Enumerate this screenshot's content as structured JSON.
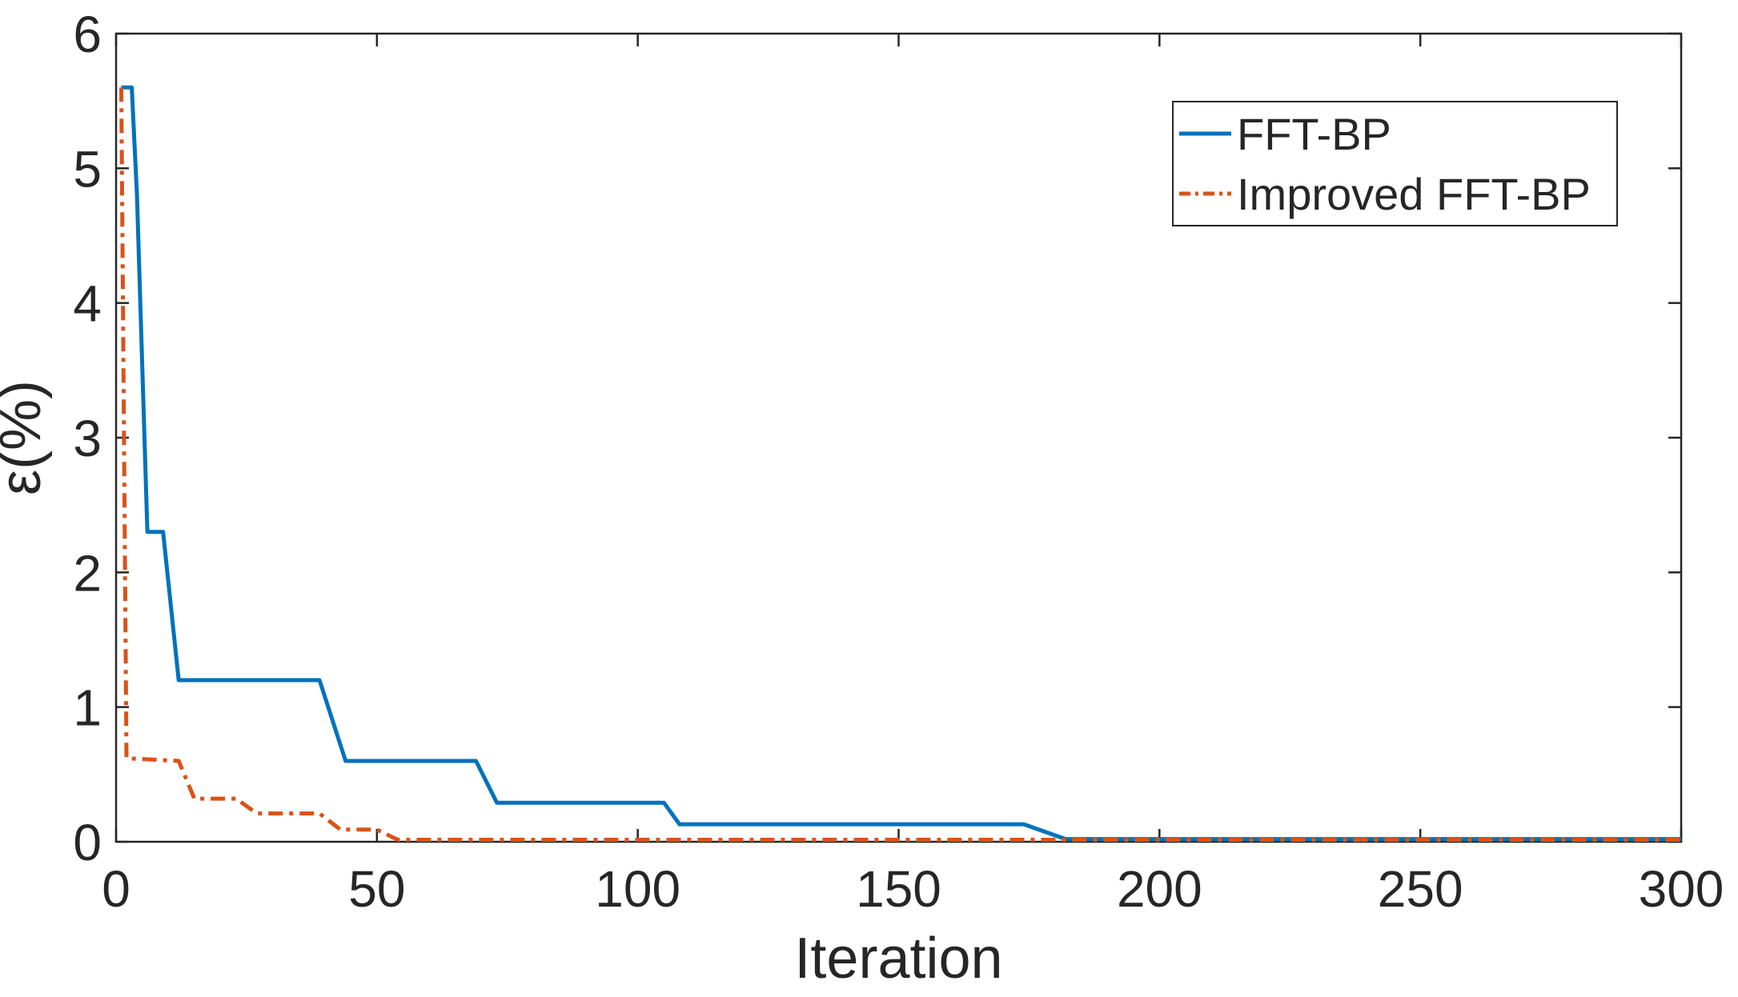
{
  "figure": {
    "background": "#ffffff",
    "axis_color": "#262626"
  },
  "chart_data": {
    "type": "line",
    "title": "",
    "xlabel": "Iteration",
    "ylabel": "ε(%)",
    "xlim": [
      0,
      300
    ],
    "ylim": [
      0,
      6
    ],
    "xticks": [
      0,
      50,
      100,
      150,
      200,
      250,
      300
    ],
    "yticks": [
      0,
      1,
      2,
      3,
      4,
      5,
      6
    ],
    "grid": false,
    "legend_position": "top-right",
    "series": [
      {
        "name": "FFT-BP",
        "color": "#0072BD",
        "line_style": "solid",
        "points": [
          [
            1,
            5.6
          ],
          [
            3,
            5.6
          ],
          [
            4,
            4.8
          ],
          [
            6,
            2.3
          ],
          [
            9,
            2.3
          ],
          [
            12,
            1.2
          ],
          [
            39,
            1.2
          ],
          [
            44,
            0.6
          ],
          [
            69,
            0.6
          ],
          [
            73,
            0.29
          ],
          [
            105,
            0.29
          ],
          [
            108,
            0.13
          ],
          [
            174,
            0.13
          ],
          [
            182,
            0.02
          ],
          [
            300,
            0.02
          ]
        ]
      },
      {
        "name": "Improved FFT-BP",
        "color": "#D95319",
        "line_style": "dash-dot",
        "points": [
          [
            1,
            5.6
          ],
          [
            2,
            0.62
          ],
          [
            12,
            0.6
          ],
          [
            15,
            0.32
          ],
          [
            23,
            0.32
          ],
          [
            27,
            0.21
          ],
          [
            39,
            0.21
          ],
          [
            43,
            0.09
          ],
          [
            50,
            0.09
          ],
          [
            54,
            0.015
          ],
          [
            300,
            0.015
          ]
        ]
      }
    ],
    "legend": {
      "items": [
        {
          "label": "FFT-BP"
        },
        {
          "label": "Improved FFT-BP"
        }
      ]
    }
  }
}
